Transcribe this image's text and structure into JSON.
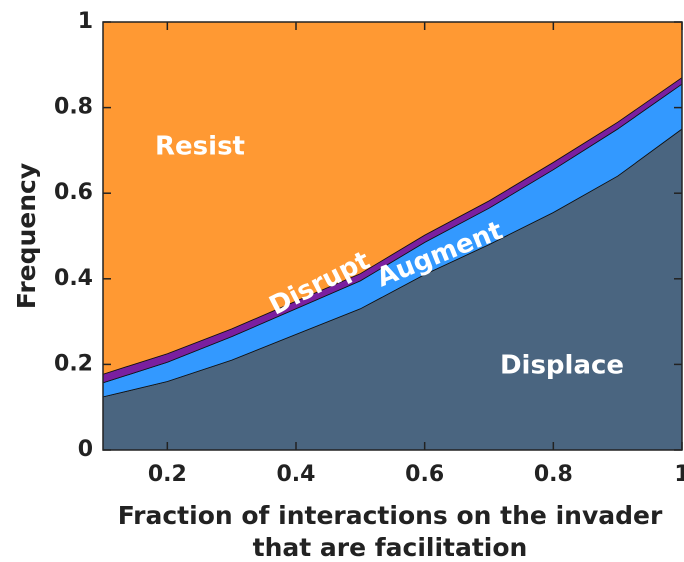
{
  "chart_data": {
    "type": "stacked_area",
    "x": [
      0.1,
      0.2,
      0.3,
      0.4,
      0.5,
      0.6,
      0.7,
      0.8,
      0.9,
      1
    ],
    "series": [
      {
        "name": "Displace",
        "color": "#4a6580",
        "values": [
          0.124,
          0.16,
          0.21,
          0.27,
          0.33,
          0.41,
          0.48,
          0.555,
          0.64,
          0.75
        ]
      },
      {
        "name": "Augment",
        "color": "#3399ff",
        "values": [
          0.033,
          0.045,
          0.055,
          0.06,
          0.065,
          0.075,
          0.085,
          0.1,
          0.11,
          0.105
        ]
      },
      {
        "name": "Disrupt",
        "color": "#7a1fa0",
        "values": [
          0.02,
          0.02,
          0.018,
          0.018,
          0.017,
          0.017,
          0.017,
          0.017,
          0.016,
          0.015
        ]
      },
      {
        "name": "Resist",
        "color": "#ff9933",
        "values": [
          0.823,
          0.775,
          0.717,
          0.652,
          0.588,
          0.498,
          0.418,
          0.328,
          0.234,
          0.13
        ]
      }
    ],
    "xlabel": [
      "Fraction of interactions on the invader",
      "that are facilitation"
    ],
    "ylabel": "Frequency",
    "xlim": [
      0.1,
      1
    ],
    "xticks": [
      0.2,
      0.4,
      0.6,
      0.8,
      1
    ],
    "ylim": [
      0,
      1
    ],
    "yticks": [
      0,
      0.2,
      0.4,
      0.6,
      0.8,
      1
    ]
  }
}
